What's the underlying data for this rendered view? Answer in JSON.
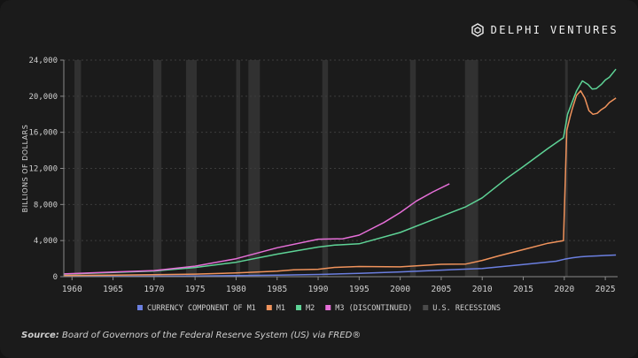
{
  "brand": {
    "name": "DELPHI VENTURES",
    "logo_icon": "delphi-logo-icon"
  },
  "source": {
    "label": "Source:",
    "text": "Board of Governors of the Federal Reserve System (US) via FRED®"
  },
  "chart_data": {
    "type": "line",
    "ylabel": "BILLIONS OF DOLLARS",
    "xlabel": "",
    "xlim": [
      1959,
      2026.5
    ],
    "ylim": [
      0,
      24000
    ],
    "x_ticks": [
      1960,
      1965,
      1970,
      1975,
      1980,
      1985,
      1990,
      1995,
      2000,
      2005,
      2010,
      2015,
      2020,
      2025
    ],
    "x_tick_labels": [
      "1960",
      "1965",
      "1970",
      "1975",
      "1980",
      "1985",
      "1990",
      "1995",
      "2000",
      "2005",
      "2010",
      "2015",
      "2020",
      "2025"
    ],
    "y_ticks": [
      0,
      4000,
      8000,
      12000,
      16000,
      20000,
      24000
    ],
    "y_tick_labels": [
      "0",
      "4,000",
      "8,000",
      "12,000",
      "16,000",
      "20,000",
      "24,000"
    ],
    "grid": true,
    "legend_position": "bottom",
    "recessions": [
      [
        1960.3,
        1961.1
      ],
      [
        1969.9,
        1970.9
      ],
      [
        1973.9,
        1975.2
      ],
      [
        1980.0,
        1980.5
      ],
      [
        1981.5,
        1982.9
      ],
      [
        1990.5,
        1991.2
      ],
      [
        2001.2,
        2001.9
      ],
      [
        2007.9,
        2009.5
      ],
      [
        2020.1,
        2020.4
      ]
    ],
    "series": [
      {
        "name": "CURRENCY COMPONENT OF M1",
        "color": "#6b7fe0",
        "x": [
          1959,
          1965,
          1970,
          1975,
          1980,
          1985,
          1990,
          1995,
          2000,
          2005,
          2010,
          2015,
          2019,
          2020,
          2021,
          2022,
          2023,
          2024,
          2025,
          2026.3
        ],
        "y": [
          29,
          37,
          48,
          73,
          115,
          170,
          246,
          372,
          531,
          720,
          915,
          1340,
          1715,
          1930,
          2100,
          2200,
          2260,
          2300,
          2350,
          2400
        ]
      },
      {
        "name": "M1",
        "color": "#f0935c",
        "x": [
          1959,
          1965,
          1970,
          1975,
          1980,
          1985,
          1987,
          1990,
          1992,
          1995,
          2000,
          2005,
          2008,
          2010,
          2012,
          2015,
          2018,
          2019.9,
          2020.3,
          2020.7,
          2021.0,
          2021.5,
          2022.0,
          2022.5,
          2023.0,
          2023.5,
          2024.0,
          2024.5,
          2025.0,
          2025.5,
          2026.3
        ],
        "y": [
          140,
          167,
          214,
          287,
          409,
          620,
          750,
          825,
          1025,
          1125,
          1085,
          1370,
          1400,
          1800,
          2300,
          3000,
          3700,
          4000,
          16200,
          17700,
          18700,
          20100,
          20600,
          19800,
          18400,
          18000,
          18100,
          18500,
          18800,
          19300,
          19800
        ]
      },
      {
        "name": "M2",
        "color": "#5ed396",
        "x": [
          1959,
          1965,
          1970,
          1975,
          1980,
          1985,
          1990,
          1992,
          1995,
          2000,
          2005,
          2008,
          2010,
          2013,
          2015,
          2018,
          2019.9,
          2020.4,
          2020.9,
          2021.5,
          2022.2,
          2022.9,
          2023.4,
          2023.9,
          2024.5,
          2025.0,
          2025.5,
          2026.3
        ],
        "y": [
          287,
          459,
          626,
          1016,
          1600,
          2500,
          3280,
          3500,
          3640,
          4900,
          6680,
          7750,
          8740,
          10900,
          12200,
          14200,
          15400,
          18000,
          19200,
          20600,
          21700,
          21300,
          20800,
          20850,
          21300,
          21800,
          22100,
          23000
        ]
      },
      {
        "name": "M3 (DISCONTINUED)",
        "color": "#e66fd8",
        "x": [
          1959,
          1965,
          1970,
          1975,
          1980,
          1985,
          1990,
          1993,
          1995,
          1998,
          2000,
          2002,
          2004,
          2006
        ],
        "y": [
          300,
          520,
          680,
          1170,
          1990,
          3200,
          4150,
          4200,
          4600,
          6000,
          7100,
          8400,
          9400,
          10300
        ]
      }
    ],
    "legend": [
      {
        "label": "CURRENCY COMPONENT OF M1",
        "color": "#6b7fe0"
      },
      {
        "label": "M1",
        "color": "#f0935c"
      },
      {
        "label": "M2",
        "color": "#5ed396"
      },
      {
        "label": "M3 (DISCONTINUED)",
        "color": "#e66fd8"
      },
      {
        "label": "U.S. RECESSIONS",
        "color": "#4a4a4a"
      }
    ]
  }
}
